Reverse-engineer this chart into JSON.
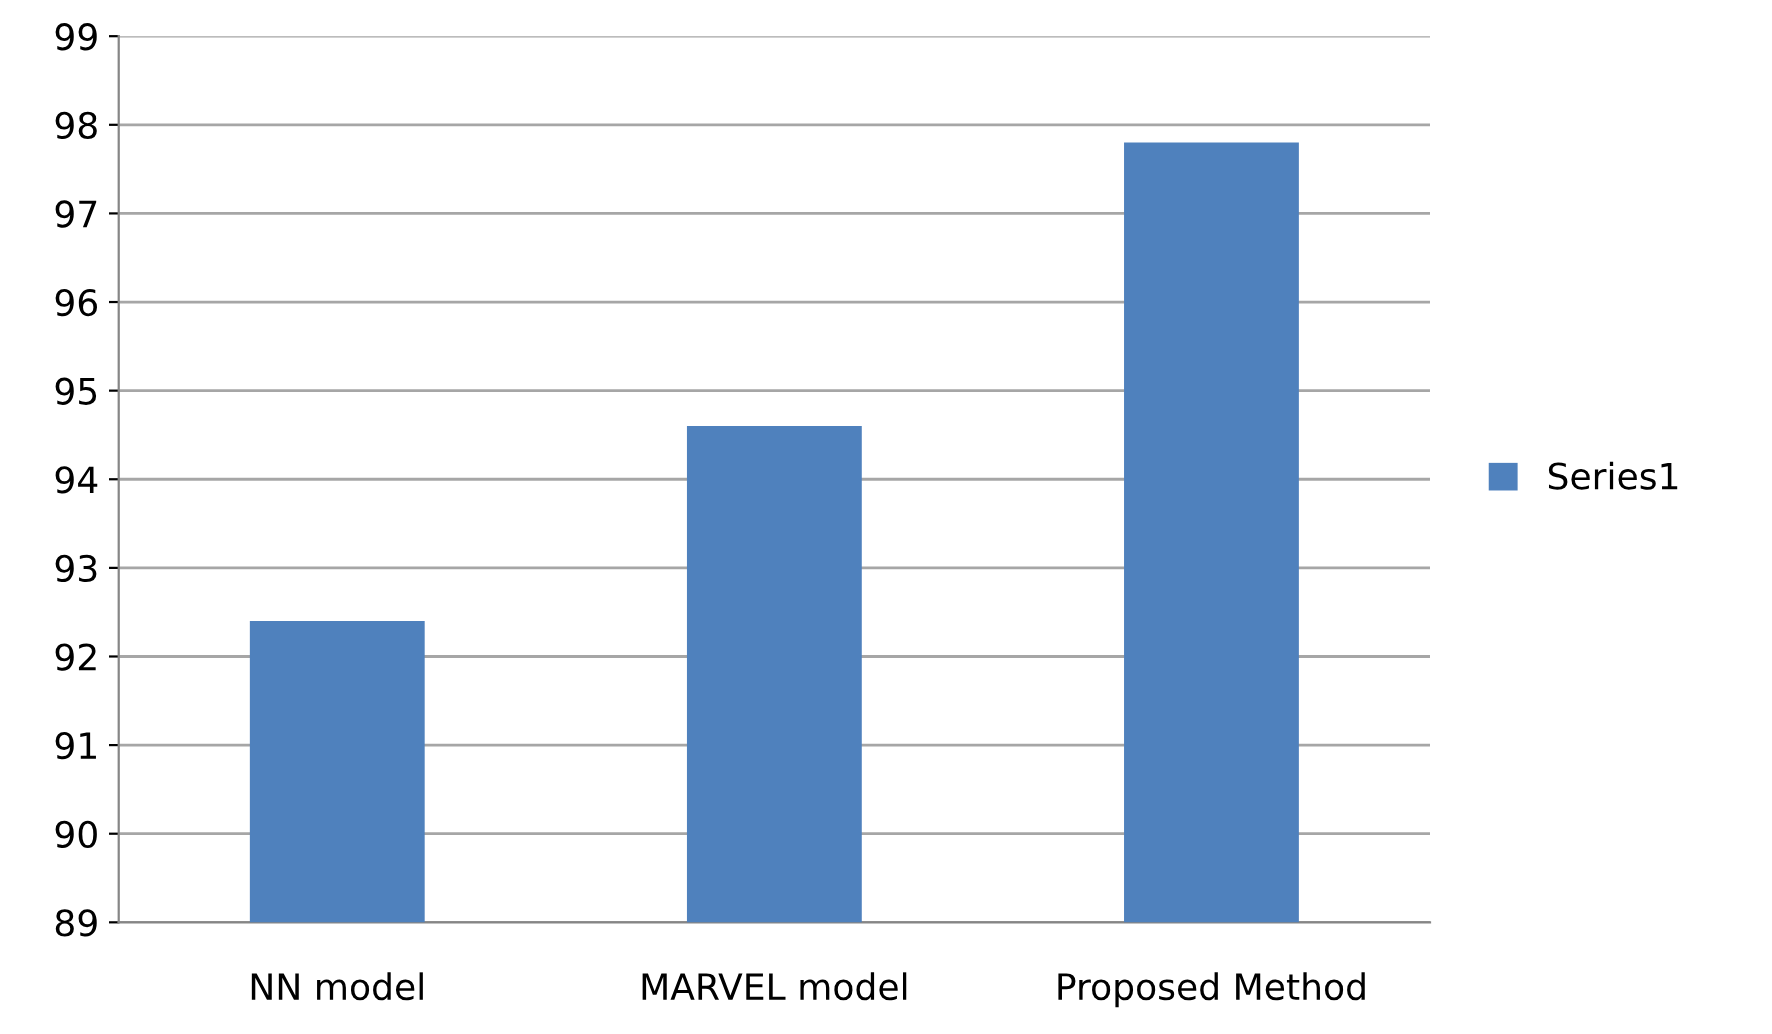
{
  "chart_data": {
    "type": "bar",
    "categories": [
      "NN model",
      "MARVEL model",
      "Proposed Method"
    ],
    "series": [
      {
        "name": "Series1",
        "color": "#4f81bd",
        "values": [
          92.4,
          94.6,
          97.8
        ]
      }
    ],
    "ylim": [
      89,
      99
    ],
    "yticks": [
      89,
      90,
      91,
      92,
      93,
      94,
      95,
      96,
      97,
      98,
      99
    ],
    "grid": "y",
    "legend": "right"
  }
}
